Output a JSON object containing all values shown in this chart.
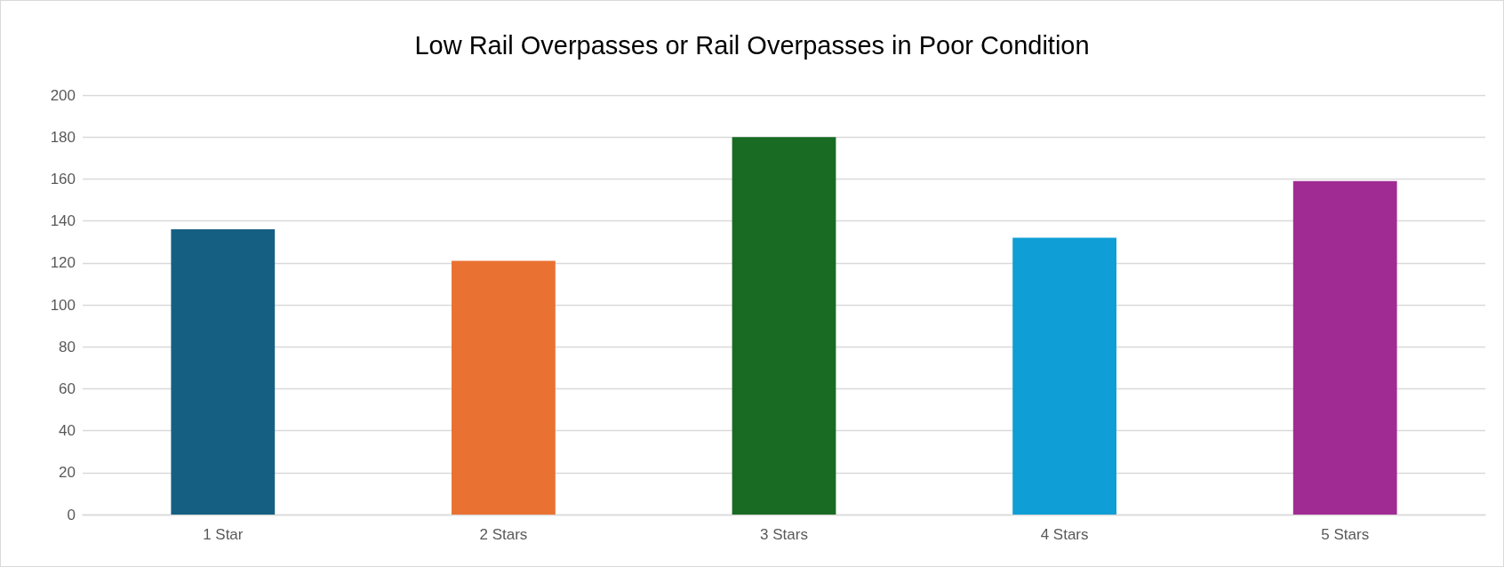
{
  "chart_data": {
    "type": "bar",
    "title": "Low Rail Overpasses or Rail Overpasses in Poor Condition",
    "categories": [
      "1 Star",
      "2 Stars",
      "3 Stars",
      "4 Stars",
      "5 Stars"
    ],
    "values": [
      136,
      121,
      180,
      132,
      159
    ],
    "colors": [
      "#156082",
      "#e97132",
      "#196b24",
      "#0f9ed5",
      "#a02b93"
    ],
    "ylim": [
      0,
      200
    ],
    "yticks": [
      0,
      20,
      40,
      60,
      80,
      100,
      120,
      140,
      160,
      180,
      200
    ],
    "grid": "y"
  }
}
